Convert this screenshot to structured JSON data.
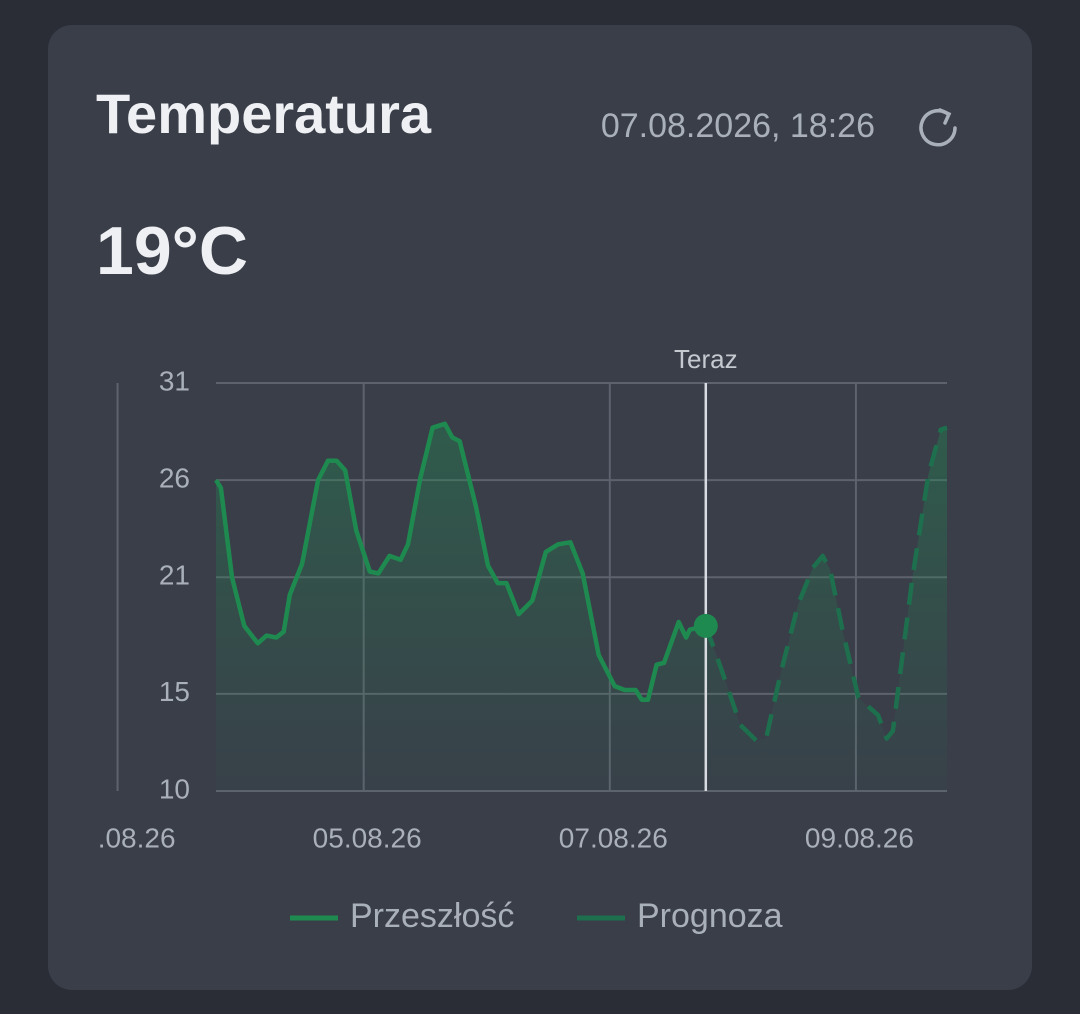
{
  "header": {
    "title": "Temperatura",
    "timestamp": "07.08.2026, 18:26",
    "current": "19°C"
  },
  "chart_data": {
    "type": "line",
    "xlim": [
      3.8,
      9.74
    ],
    "xticks": [
      {
        "value": 3,
        "label": ".08.26"
      },
      {
        "value": 5,
        "label": "05.08.26"
      },
      {
        "value": 7,
        "label": "07.08.26"
      },
      {
        "value": 9,
        "label": "09.08.26"
      }
    ],
    "ylim": [
      10,
      31
    ],
    "yticks": [
      10,
      15,
      21,
      26,
      31
    ],
    "grid": true,
    "legend": "bottom",
    "annotations": [
      {
        "x": 7.78,
        "label": "Teraz"
      }
    ],
    "series": [
      {
        "name": "Przeszłość",
        "color": "#1f8a4f",
        "line_style": "solid",
        "x": [
          3.8,
          3.84,
          3.93,
          4.03,
          4.14,
          4.21,
          4.29,
          4.35,
          4.4,
          4.5,
          4.63,
          4.71,
          4.78,
          4.85,
          4.94,
          5.05,
          5.12,
          5.21,
          5.3,
          5.36,
          5.46,
          5.56,
          5.66,
          5.72,
          5.78,
          5.91,
          6.01,
          6.09,
          6.16,
          6.26,
          6.37,
          6.48,
          6.58,
          6.68,
          6.78,
          6.91,
          7.04,
          7.12,
          7.21,
          7.26,
          7.31,
          7.38,
          7.44,
          7.56,
          7.62,
          7.65,
          7.78
        ],
        "values": [
          26.0,
          25.6,
          21.0,
          18.5,
          17.6,
          18.0,
          17.9,
          18.2,
          20.1,
          21.7,
          26.0,
          27.0,
          27.0,
          26.5,
          23.4,
          21.3,
          21.2,
          22.1,
          21.9,
          22.7,
          26.1,
          28.7,
          28.9,
          28.2,
          28.0,
          24.7,
          21.6,
          20.7,
          20.7,
          19.1,
          19.8,
          22.3,
          22.7,
          22.8,
          21.2,
          17.0,
          15.4,
          15.2,
          15.2,
          14.7,
          14.7,
          16.5,
          16.6,
          18.7,
          17.9,
          18.3,
          18.5
        ]
      },
      {
        "name": "Prognoza",
        "color": "#1e6f4d",
        "line_style": "dashed",
        "x": [
          7.78,
          7.91,
          8.06,
          8.19,
          8.27,
          8.39,
          8.53,
          8.65,
          8.73,
          8.79,
          8.89,
          9.02,
          9.18,
          9.25,
          9.3,
          9.46,
          9.59,
          9.69,
          9.74
        ],
        "values": [
          18.5,
          16.2,
          13.4,
          12.6,
          12.7,
          16.1,
          19.6,
          21.5,
          22.1,
          21.4,
          18.3,
          14.8,
          13.9,
          12.7,
          13.1,
          21.0,
          26.3,
          28.6,
          28.7
        ]
      }
    ]
  }
}
